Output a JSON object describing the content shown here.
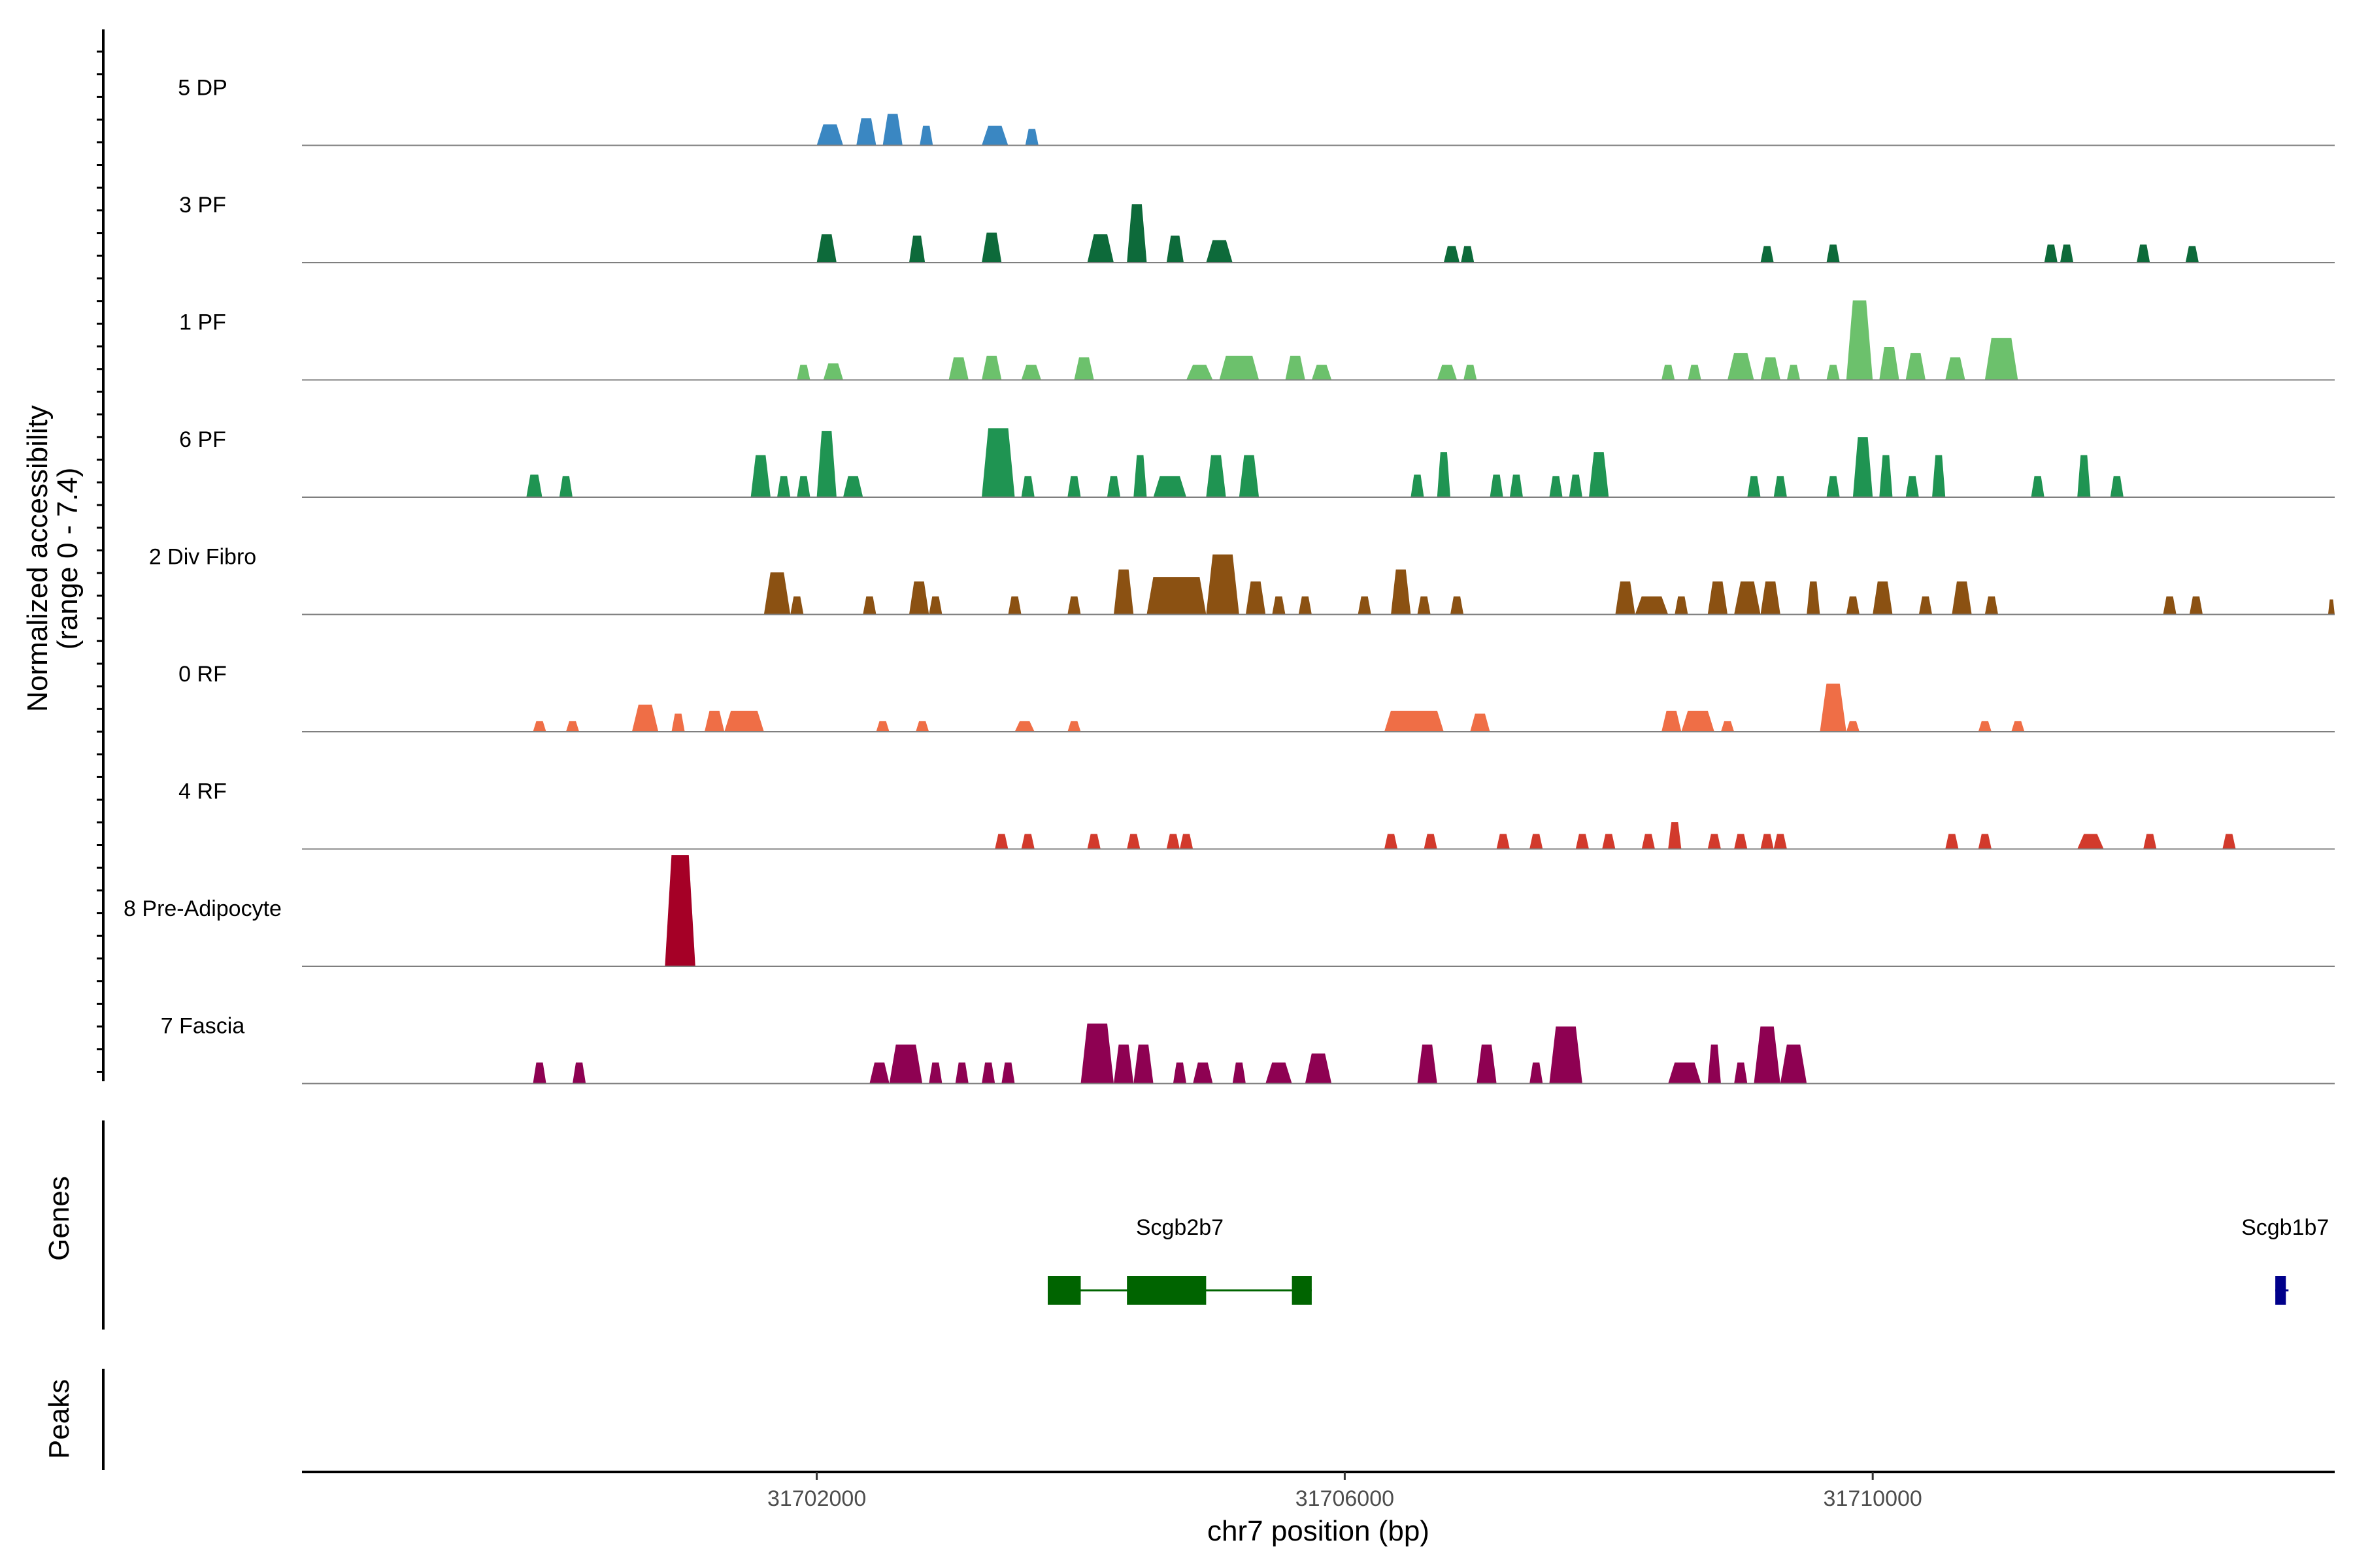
{
  "chart_data": {
    "type": "coverage",
    "chromosome": "chr7",
    "xlim": [
      31698100,
      31713500
    ],
    "xlabel": "chr7 position (bp)",
    "ylabel": [
      "Normalized accessibility",
      "(range 0 - 7.4)"
    ],
    "y_range": [
      0,
      7.4
    ],
    "x_ticks": [
      31702000,
      31706000,
      31710000
    ],
    "x_tick_labels": [
      "31702000",
      "31706000",
      "31710000"
    ],
    "tracks": [
      {
        "name": "5 DP",
        "color": "#3a87c2",
        "peaks": [
          [
            31702000,
            31702200,
            1.4
          ],
          [
            31702300,
            31702450,
            1.8
          ],
          [
            31702500,
            31702650,
            2.1
          ],
          [
            31702780,
            31702880,
            1.3
          ],
          [
            31703250,
            31703450,
            1.3
          ],
          [
            31703580,
            31703680,
            1.1
          ]
        ]
      },
      {
        "name": "3 PF",
        "color": "#0d6a3a",
        "peaks": [
          [
            31702000,
            31702150,
            1.9
          ],
          [
            31702700,
            31702820,
            1.8
          ],
          [
            31703250,
            31703400,
            2.0
          ],
          [
            31704050,
            31704250,
            1.9
          ],
          [
            31704350,
            31704500,
            3.9
          ],
          [
            31704650,
            31704780,
            1.8
          ],
          [
            31704950,
            31705150,
            1.5
          ],
          [
            31706750,
            31706870,
            1.1
          ],
          [
            31706880,
            31706980,
            1.1
          ],
          [
            31709150,
            31709250,
            1.1
          ],
          [
            31709650,
            31709750,
            1.2
          ],
          [
            31711300,
            31711400,
            1.2
          ],
          [
            31711420,
            31711520,
            1.2
          ],
          [
            31712000,
            31712100,
            1.2
          ],
          [
            31712370,
            31712470,
            1.1
          ]
        ]
      },
      {
        "name": "1 PF",
        "color": "#6cc16c",
        "peaks": [
          [
            31701850,
            31701950,
            1.0
          ],
          [
            31702050,
            31702200,
            1.1
          ],
          [
            31703000,
            31703150,
            1.5
          ],
          [
            31703250,
            31703400,
            1.6
          ],
          [
            31703550,
            31703700,
            1.0
          ],
          [
            31703950,
            31704100,
            1.5
          ],
          [
            31704800,
            31705000,
            1.0
          ],
          [
            31705050,
            31705350,
            1.6
          ],
          [
            31705550,
            31705700,
            1.6
          ],
          [
            31705750,
            31705900,
            1.0
          ],
          [
            31706700,
            31706850,
            1.0
          ],
          [
            31706900,
            31707000,
            1.0
          ],
          [
            31708400,
            31708500,
            1.0
          ],
          [
            31708600,
            31708700,
            1.0
          ],
          [
            31708900,
            31709100,
            1.8
          ],
          [
            31709150,
            31709300,
            1.5
          ],
          [
            31709350,
            31709450,
            1.0
          ],
          [
            31709650,
            31709750,
            1.0
          ],
          [
            31709800,
            31710000,
            5.3
          ],
          [
            31710050,
            31710200,
            2.2
          ],
          [
            31710250,
            31710400,
            1.8
          ],
          [
            31710550,
            31710700,
            1.5
          ],
          [
            31710850,
            31711100,
            2.8
          ]
        ]
      },
      {
        "name": "6 PF",
        "color": "#1f9452",
        "peaks": [
          [
            31699800,
            31699920,
            1.5
          ],
          [
            31700050,
            31700150,
            1.4
          ],
          [
            31701500,
            31701650,
            2.8
          ],
          [
            31701700,
            31701800,
            1.4
          ],
          [
            31701850,
            31701950,
            1.4
          ],
          [
            31702000,
            31702150,
            4.4
          ],
          [
            31702200,
            31702350,
            1.4
          ],
          [
            31703250,
            31703500,
            4.6
          ],
          [
            31703550,
            31703650,
            1.4
          ],
          [
            31703900,
            31704000,
            1.4
          ],
          [
            31704200,
            31704300,
            1.4
          ],
          [
            31704400,
            31704500,
            2.8
          ],
          [
            31704550,
            31704800,
            1.4
          ],
          [
            31704950,
            31705100,
            2.8
          ],
          [
            31705200,
            31705350,
            2.8
          ],
          [
            31706500,
            31706600,
            1.5
          ],
          [
            31706700,
            31706800,
            3.0
          ],
          [
            31707100,
            31707200,
            1.5
          ],
          [
            31707250,
            31707350,
            1.5
          ],
          [
            31707550,
            31707650,
            1.4
          ],
          [
            31707700,
            31707800,
            1.5
          ],
          [
            31707850,
            31708000,
            3.0
          ],
          [
            31709050,
            31709150,
            1.4
          ],
          [
            31709250,
            31709350,
            1.4
          ],
          [
            31709650,
            31709750,
            1.4
          ],
          [
            31709850,
            31710000,
            4.0
          ],
          [
            31710050,
            31710150,
            2.8
          ],
          [
            31710250,
            31710350,
            1.4
          ],
          [
            31710450,
            31710550,
            2.8
          ],
          [
            31711200,
            31711300,
            1.4
          ],
          [
            31711550,
            31711650,
            2.8
          ],
          [
            31711800,
            31711900,
            1.4
          ]
        ]
      },
      {
        "name": "2 Div Fibro",
        "color": "#8b5112",
        "peaks": [
          [
            31701600,
            31701800,
            2.8
          ],
          [
            31701800,
            31701900,
            1.2
          ],
          [
            31702350,
            31702450,
            1.2
          ],
          [
            31702700,
            31702850,
            2.2
          ],
          [
            31702850,
            31702950,
            1.2
          ],
          [
            31703450,
            31703550,
            1.2
          ],
          [
            31703900,
            31704000,
            1.2
          ],
          [
            31704250,
            31704400,
            3.0
          ],
          [
            31704500,
            31704950,
            2.5
          ],
          [
            31704950,
            31705200,
            4.0
          ],
          [
            31705250,
            31705400,
            2.2
          ],
          [
            31705450,
            31705550,
            1.2
          ],
          [
            31705650,
            31705750,
            1.2
          ],
          [
            31706100,
            31706200,
            1.2
          ],
          [
            31706350,
            31706500,
            3.0
          ],
          [
            31706550,
            31706650,
            1.2
          ],
          [
            31706800,
            31706900,
            1.2
          ],
          [
            31708050,
            31708200,
            2.2
          ],
          [
            31708200,
            31708450,
            1.2
          ],
          [
            31708500,
            31708600,
            1.2
          ],
          [
            31708750,
            31708900,
            2.2
          ],
          [
            31708950,
            31709150,
            2.2
          ],
          [
            31709150,
            31709300,
            2.2
          ],
          [
            31709500,
            31709600,
            2.2
          ],
          [
            31709800,
            31709900,
            1.2
          ],
          [
            31710000,
            31710150,
            2.2
          ],
          [
            31710350,
            31710450,
            1.2
          ],
          [
            31710600,
            31710750,
            2.2
          ],
          [
            31710850,
            31710950,
            1.2
          ],
          [
            31712200,
            31712300,
            1.2
          ],
          [
            31712400,
            31712500,
            1.2
          ],
          [
            31713450,
            31713500,
            1.0
          ]
        ]
      },
      {
        "name": "0 RF",
        "color": "#ef6e46",
        "peaks": [
          [
            31699850,
            31699950,
            0.7
          ],
          [
            31700100,
            31700200,
            0.7
          ],
          [
            31700600,
            31700800,
            1.8
          ],
          [
            31700900,
            31701000,
            1.2
          ],
          [
            31701150,
            31701300,
            1.4
          ],
          [
            31701300,
            31701600,
            1.4
          ],
          [
            31702450,
            31702550,
            0.7
          ],
          [
            31702750,
            31702850,
            0.7
          ],
          [
            31703500,
            31703650,
            0.7
          ],
          [
            31703900,
            31704000,
            0.7
          ],
          [
            31706300,
            31706750,
            1.4
          ],
          [
            31706950,
            31707100,
            1.2
          ],
          [
            31708400,
            31708550,
            1.4
          ],
          [
            31708550,
            31708800,
            1.4
          ],
          [
            31708850,
            31708950,
            0.7
          ],
          [
            31709600,
            31709800,
            3.2
          ],
          [
            31709800,
            31709900,
            0.7
          ],
          [
            31710800,
            31710900,
            0.7
          ],
          [
            31711050,
            31711150,
            0.7
          ]
        ]
      },
      {
        "name": "4 RF",
        "color": "#d23a2c",
        "peaks": [
          [
            31703350,
            31703450,
            1.0
          ],
          [
            31703550,
            31703650,
            1.0
          ],
          [
            31704050,
            31704150,
            1.0
          ],
          [
            31704350,
            31704450,
            1.0
          ],
          [
            31704650,
            31704750,
            1.0
          ],
          [
            31704750,
            31704850,
            1.0
          ],
          [
            31706300,
            31706400,
            1.0
          ],
          [
            31706600,
            31706700,
            1.0
          ],
          [
            31707150,
            31707250,
            1.0
          ],
          [
            31707400,
            31707500,
            1.0
          ],
          [
            31707750,
            31707850,
            1.0
          ],
          [
            31707950,
            31708050,
            1.0
          ],
          [
            31708250,
            31708350,
            1.0
          ],
          [
            31708450,
            31708550,
            1.8
          ],
          [
            31708750,
            31708850,
            1.0
          ],
          [
            31708950,
            31709050,
            1.0
          ],
          [
            31709150,
            31709250,
            1.0
          ],
          [
            31709250,
            31709350,
            1.0
          ],
          [
            31710550,
            31710650,
            1.0
          ],
          [
            31710800,
            31710900,
            1.0
          ],
          [
            31711550,
            31711750,
            1.0
          ],
          [
            31712050,
            31712150,
            1.0
          ],
          [
            31712650,
            31712750,
            1.0
          ]
        ]
      },
      {
        "name": "8 Pre-Adipocyte",
        "color": "#a50026",
        "peaks": [
          [
            31700850,
            31701080,
            7.4
          ]
        ]
      },
      {
        "name": "7 Fascia",
        "color": "#8e0152",
        "peaks": [
          [
            31699850,
            31699950,
            1.4
          ],
          [
            31700150,
            31700250,
            1.4
          ],
          [
            31702400,
            31702550,
            1.4
          ],
          [
            31702550,
            31702800,
            2.6
          ],
          [
            31702850,
            31702950,
            1.4
          ],
          [
            31703050,
            31703150,
            1.4
          ],
          [
            31703250,
            31703350,
            1.4
          ],
          [
            31703400,
            31703500,
            1.4
          ],
          [
            31704000,
            31704250,
            4.0
          ],
          [
            31704250,
            31704400,
            2.6
          ],
          [
            31704400,
            31704550,
            2.6
          ],
          [
            31704700,
            31704800,
            1.4
          ],
          [
            31704850,
            31705000,
            1.4
          ],
          [
            31705150,
            31705250,
            1.4
          ],
          [
            31705400,
            31705600,
            1.4
          ],
          [
            31705700,
            31705900,
            2.0
          ],
          [
            31706550,
            31706700,
            2.6
          ],
          [
            31707000,
            31707150,
            2.6
          ],
          [
            31707400,
            31707500,
            1.4
          ],
          [
            31707550,
            31707800,
            3.8
          ],
          [
            31708450,
            31708700,
            1.4
          ],
          [
            31708750,
            31708850,
            2.6
          ],
          [
            31708950,
            31709050,
            1.4
          ],
          [
            31709100,
            31709300,
            3.8
          ],
          [
            31709300,
            31709500,
            2.6
          ]
        ]
      }
    ],
    "genes": [
      {
        "name": "Scgb2b7",
        "color": "#006400",
        "start": 31703750,
        "end": 31705750,
        "exons": [
          [
            31703750,
            31704000
          ],
          [
            31704350,
            31704950
          ],
          [
            31705600,
            31705750
          ]
        ]
      },
      {
        "name": "Scgb1b7",
        "color": "#00008b",
        "start": 31713050,
        "end": 31713150,
        "exons": [
          [
            31713050,
            31713130
          ]
        ]
      }
    ],
    "panel_titles": {
      "genes": "Genes",
      "peaks": "Peaks"
    },
    "track_baseline_color": "#7f7f7f"
  }
}
